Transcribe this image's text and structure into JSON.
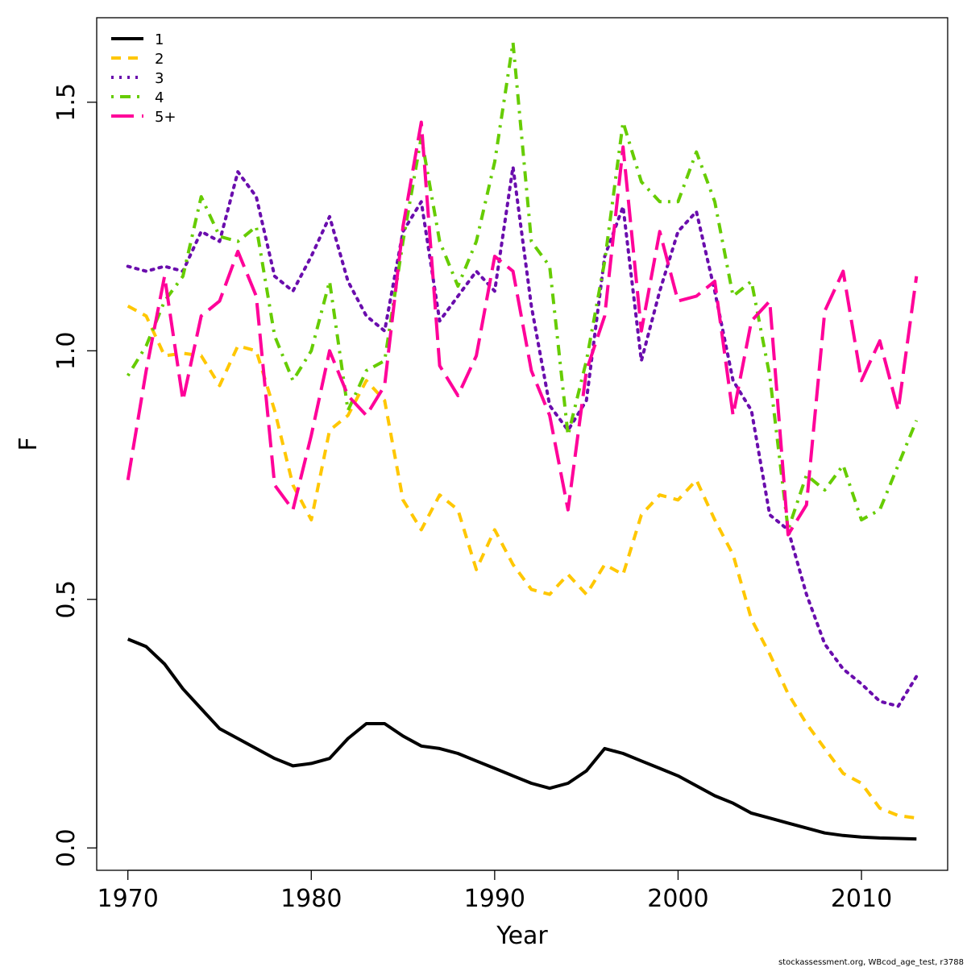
{
  "chart_data": {
    "type": "line",
    "xlabel": "Year",
    "ylabel": "F",
    "xlim": [
      1968.3,
      2014.7
    ],
    "ylim": [
      -0.045,
      1.67
    ],
    "xticks": [
      1970,
      1980,
      1990,
      2000,
      2010
    ],
    "yticks": [
      0.0,
      0.5,
      1.0,
      1.5
    ],
    "ytick_labels": [
      "0.0",
      "0.5",
      "1.0",
      "1.5"
    ],
    "grid": false,
    "legend_position": "top-left",
    "x": [
      1970,
      1971,
      1972,
      1973,
      1974,
      1975,
      1976,
      1977,
      1978,
      1979,
      1980,
      1981,
      1982,
      1983,
      1984,
      1985,
      1986,
      1987,
      1988,
      1989,
      1990,
      1991,
      1992,
      1993,
      1994,
      1995,
      1996,
      1997,
      1998,
      1999,
      2000,
      2001,
      2002,
      2003,
      2004,
      2005,
      2006,
      2007,
      2008,
      2009,
      2010,
      2011,
      2012,
      2013
    ],
    "series": [
      {
        "name": "1",
        "color": "#000000",
        "dash": "solid",
        "values": [
          0.42,
          0.405,
          0.37,
          0.32,
          0.28,
          0.24,
          0.22,
          0.2,
          0.18,
          0.165,
          0.17,
          0.18,
          0.22,
          0.25,
          0.25,
          0.225,
          0.205,
          0.2,
          0.19,
          0.175,
          0.16,
          0.145,
          0.13,
          0.12,
          0.13,
          0.155,
          0.2,
          0.19,
          0.175,
          0.16,
          0.145,
          0.125,
          0.105,
          0.09,
          0.07,
          0.06,
          0.05,
          0.04,
          0.03,
          0.025,
          0.022,
          0.02,
          0.019,
          0.018
        ]
      },
      {
        "name": "2",
        "color": "#FFC700",
        "dash": "dashed",
        "values": [
          1.09,
          1.07,
          0.99,
          0.995,
          0.99,
          0.93,
          1.01,
          1.0,
          0.88,
          0.73,
          0.66,
          0.84,
          0.87,
          0.94,
          0.9,
          0.7,
          0.64,
          0.71,
          0.68,
          0.56,
          0.64,
          0.57,
          0.52,
          0.51,
          0.55,
          0.51,
          0.57,
          0.55,
          0.67,
          0.71,
          0.7,
          0.74,
          0.66,
          0.59,
          0.46,
          0.39,
          0.31,
          0.25,
          0.2,
          0.15,
          0.13,
          0.08,
          0.065,
          0.06
        ]
      },
      {
        "name": "3",
        "color": "#6A0DAD",
        "dash": "dotted",
        "values": [
          1.17,
          1.16,
          1.17,
          1.16,
          1.24,
          1.22,
          1.36,
          1.31,
          1.15,
          1.12,
          1.19,
          1.27,
          1.14,
          1.07,
          1.04,
          1.24,
          1.3,
          1.06,
          1.11,
          1.16,
          1.12,
          1.37,
          1.09,
          0.89,
          0.84,
          0.9,
          1.19,
          1.29,
          0.98,
          1.12,
          1.24,
          1.28,
          1.12,
          0.94,
          0.88,
          0.67,
          0.64,
          0.51,
          0.41,
          0.36,
          0.33,
          0.295,
          0.285,
          0.345
        ]
      },
      {
        "name": "4",
        "color": "#66CC00",
        "dash": "dotdash",
        "values": [
          0.95,
          1.01,
          1.1,
          1.15,
          1.31,
          1.23,
          1.22,
          1.25,
          1.03,
          0.94,
          1.0,
          1.14,
          0.88,
          0.96,
          0.98,
          1.22,
          1.43,
          1.22,
          1.13,
          1.22,
          1.38,
          1.62,
          1.22,
          1.17,
          0.83,
          0.98,
          1.18,
          1.46,
          1.34,
          1.3,
          1.3,
          1.4,
          1.3,
          1.11,
          1.14,
          0.95,
          0.64,
          0.75,
          0.72,
          0.77,
          0.66,
          0.68,
          0.77,
          0.86
        ]
      },
      {
        "name": "5+",
        "color": "#FF0099",
        "dash": "longdash",
        "values": [
          0.74,
          0.96,
          1.15,
          0.9,
          1.07,
          1.1,
          1.2,
          1.11,
          0.73,
          0.68,
          0.83,
          1.0,
          0.91,
          0.87,
          0.93,
          1.25,
          1.46,
          0.97,
          0.91,
          0.99,
          1.19,
          1.16,
          0.96,
          0.87,
          0.68,
          0.96,
          1.07,
          1.41,
          1.04,
          1.24,
          1.1,
          1.11,
          1.14,
          0.87,
          1.06,
          1.1,
          0.63,
          0.69,
          1.08,
          1.16,
          0.94,
          1.02,
          0.88,
          1.15
        ]
      }
    ]
  },
  "credit": "stockassessment.org, WBcod_age_test, r3788"
}
